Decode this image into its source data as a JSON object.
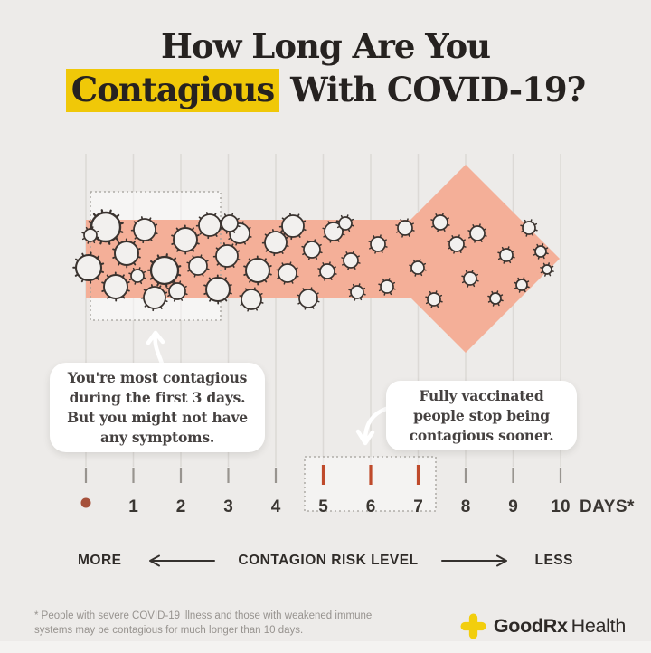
{
  "title": {
    "line1": "How Long Are You",
    "highlight_word": "Contagious",
    "line2_rest": " With COVID-19?"
  },
  "chart_data": {
    "type": "timeline",
    "title": "How Long Are You Contagious With COVID-19?",
    "x_unit": "days",
    "x_ticks": [
      0,
      1,
      2,
      3,
      4,
      5,
      6,
      7,
      8,
      9,
      10
    ],
    "x_tick_labels": [
      "",
      "1",
      "2",
      "3",
      "4",
      "5",
      "6",
      "7",
      "8",
      "9",
      "10"
    ],
    "x_suffix": "DAYS*",
    "encoding": "virus particle density inside a right-pointing arrow decreases from day 0 to day 10, representing falling contagion risk",
    "annotated_ranges": [
      {
        "range_days": [
          0,
          3
        ],
        "label": "You're most contagious during the first 3 days. But you might not have any symptoms."
      },
      {
        "range_days": [
          5,
          7
        ],
        "label": "Fully vaccinated people stop being contagious sooner.",
        "tick_style": "red"
      }
    ],
    "risk_axis": {
      "left_label": "MORE",
      "center_label": "CONTAGION RISK LEVEL",
      "right_label": "LESS"
    }
  },
  "callouts": {
    "first": {
      "lines": [
        "You're most contagious",
        "during the first 3 days.",
        "But you might not have",
        "any symptoms."
      ]
    },
    "second": {
      "lines": [
        "Fully vaccinated",
        "people stop being",
        "contagious sooner."
      ]
    }
  },
  "risk_row": {
    "more": "MORE",
    "label": "CONTAGION RISK LEVEL",
    "less": "LESS"
  },
  "footnote": {
    "line1": "* People with severe COVID-19 illness and those with weakened immune",
    "line2": "systems may be contagious for much longer than 10 days."
  },
  "logo": {
    "bold": "GoodRx",
    "regular": "Health"
  },
  "colors": {
    "background": "#EDEBE9",
    "arrow": "#F4AF98",
    "highlight_yellow": "#F0C808",
    "gridline": "#DCD9D6",
    "tick_gray": "#98948F",
    "tick_red": "#BF4A2B",
    "day_zero_dot": "#A6513B",
    "virus_stroke": "#3A332F",
    "virus_fill": "#F2F0EE",
    "label_text": "#3A3632",
    "logo_yellow": "#F2CE0D"
  }
}
